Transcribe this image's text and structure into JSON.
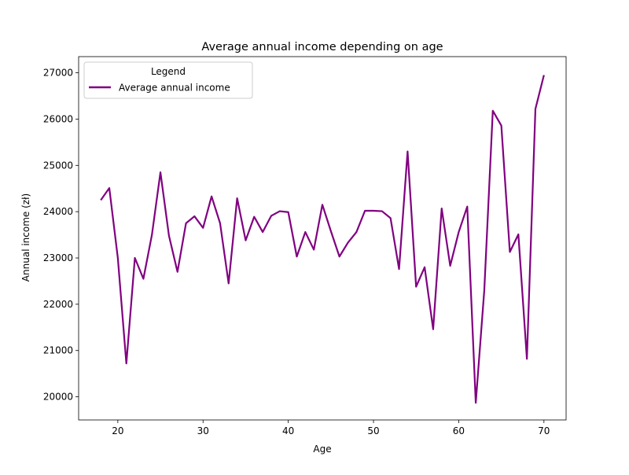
{
  "chart_data": {
    "type": "line",
    "title": "Average annual income depending on age",
    "xlabel": "Age",
    "ylabel": "Annual income (zł)",
    "xlim": [
      15.4,
      72.6
    ],
    "ylim": [
      19500,
      27350
    ],
    "xticks": [
      20,
      30,
      40,
      50,
      60,
      70
    ],
    "yticks": [
      20000,
      21000,
      22000,
      23000,
      24000,
      25000,
      26000,
      27000
    ],
    "grid": false,
    "legend": {
      "title": "Legend",
      "placement": "upper left"
    },
    "series": [
      {
        "name": "Average annual income",
        "color": "#800080",
        "x": [
          18,
          19,
          20,
          21,
          22,
          23,
          24,
          25,
          26,
          27,
          28,
          29,
          30,
          31,
          32,
          33,
          34,
          35,
          36,
          37,
          38,
          39,
          40,
          41,
          42,
          43,
          44,
          45,
          46,
          47,
          48,
          49,
          50,
          51,
          52,
          53,
          54,
          55,
          56,
          57,
          58,
          59,
          60,
          61,
          62,
          63,
          64,
          65,
          66,
          67,
          68,
          69,
          70
        ],
        "y": [
          24250,
          24510,
          23000,
          20720,
          23000,
          22550,
          23500,
          24850,
          23480,
          22700,
          23750,
          23900,
          23650,
          24330,
          23750,
          22450,
          24290,
          23380,
          23890,
          23560,
          23910,
          24010,
          23990,
          23030,
          23560,
          23180,
          24150,
          23580,
          23030,
          23330,
          23560,
          24020,
          24020,
          24010,
          23860,
          22760,
          25300,
          22380,
          22800,
          21460,
          24070,
          22830,
          23560,
          24110,
          19870,
          22300,
          26180,
          25860,
          23130,
          23510,
          20820,
          26220,
          26950
        ]
      }
    ]
  }
}
